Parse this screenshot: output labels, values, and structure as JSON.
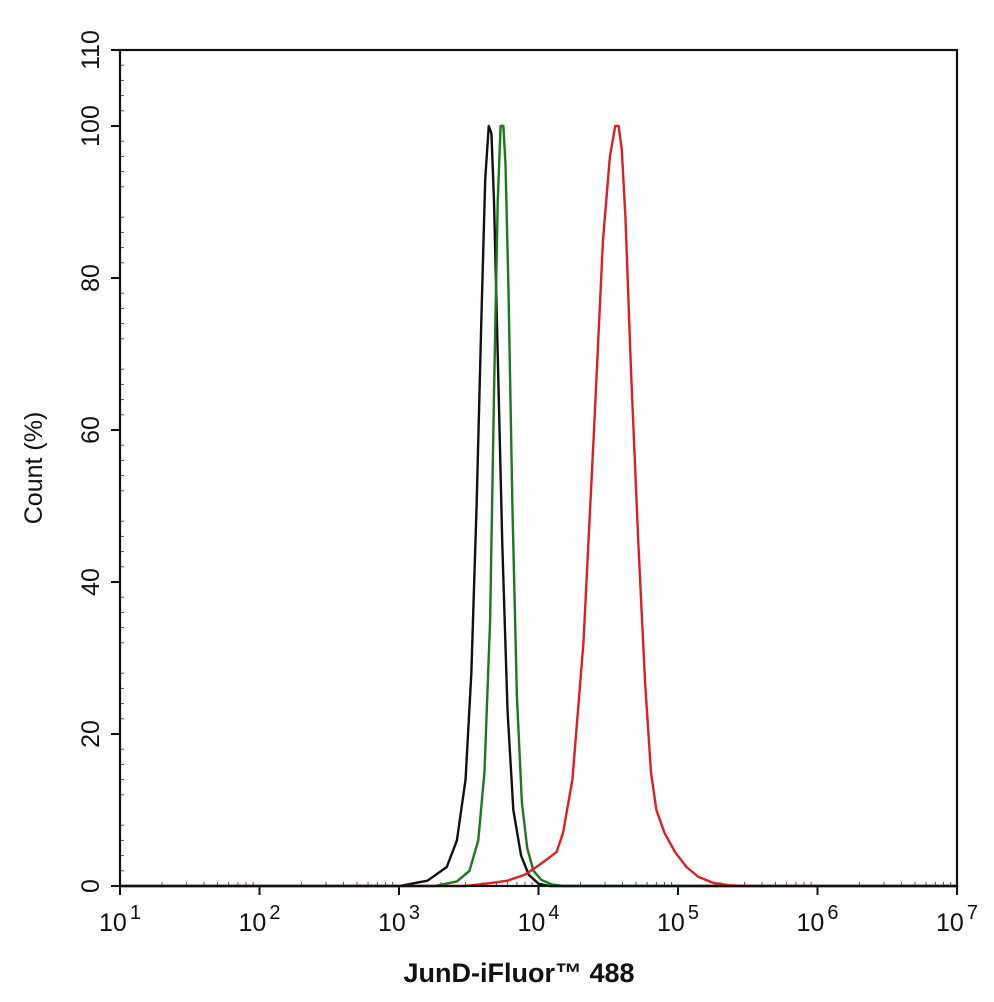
{
  "chart_data": {
    "type": "line",
    "xlabel": "JunD-iFluor™ 488",
    "ylabel": "Count  (%)",
    "x_scale": "log",
    "xlim": [
      10,
      10000000
    ],
    "ylim": [
      0,
      110
    ],
    "x_ticks": [
      {
        "base": "10",
        "exp": "1",
        "value": 10
      },
      {
        "base": "10",
        "exp": "2",
        "value": 100
      },
      {
        "base": "10",
        "exp": "3",
        "value": 1000
      },
      {
        "base": "10",
        "exp": "4",
        "value": 10000
      },
      {
        "base": "10",
        "exp": "5",
        "value": 100000
      },
      {
        "base": "10",
        "exp": "6",
        "value": 1000000
      },
      {
        "base": "10",
        "exp": "7",
        "value": 10000000
      }
    ],
    "y_ticks": [
      "0",
      "20",
      "40",
      "60",
      "80",
      "100",
      "110"
    ],
    "y_tick_values": [
      0,
      20,
      40,
      60,
      80,
      100,
      110
    ],
    "grid": false,
    "series": [
      {
        "color": "#111111",
        "x": [
          10,
          1000,
          1600,
          2200,
          2600,
          3000,
          3300,
          3600,
          3900,
          4150,
          4400,
          4600,
          4800,
          5100,
          5500,
          6000,
          6600,
          7500,
          8500,
          10000,
          12000,
          10000000
        ],
        "y": [
          0,
          0,
          0.7,
          2.5,
          6,
          14,
          28,
          50,
          75,
          93,
          100,
          99,
          90,
          70,
          45,
          23,
          10,
          4,
          1.5,
          0.3,
          0,
          0
        ]
      },
      {
        "color": "#1a7a1a",
        "x": [
          10,
          1800,
          2600,
          3200,
          3700,
          4100,
          4500,
          4800,
          5100,
          5350,
          5600,
          5800,
          6100,
          6500,
          7000,
          7600,
          8300,
          9200,
          10500,
          12500,
          15000,
          10000000
        ],
        "y": [
          0,
          0,
          0.6,
          2,
          6,
          15,
          35,
          65,
          90,
          100,
          100,
          95,
          78,
          50,
          25,
          11,
          5,
          2,
          0.8,
          0.2,
          0,
          0
        ]
      },
      {
        "color": "#dd1f1f",
        "x": [
          10,
          3000,
          4200,
          6000,
          8000,
          10000,
          11500,
          13500,
          15000,
          17500,
          21000,
          25000,
          29000,
          32500,
          35500,
          37500,
          39500,
          42000,
          46000,
          52000,
          58000,
          64000,
          70000,
          80000,
          95000,
          115000,
          140000,
          180000,
          230000,
          290000,
          10000000
        ],
        "y": [
          0,
          0,
          0.3,
          0.7,
          1.5,
          2.7,
          3.5,
          4.5,
          7,
          14,
          32,
          60,
          85,
          96,
          100,
          100,
          97,
          88,
          68,
          45,
          27,
          15,
          10,
          7,
          4.5,
          2.5,
          1.2,
          0.4,
          0.1,
          0,
          0
        ]
      }
    ]
  }
}
